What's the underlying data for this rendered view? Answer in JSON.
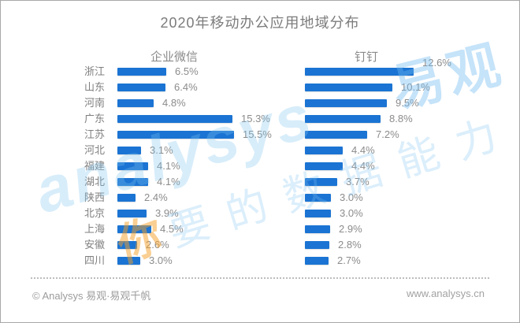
{
  "title": "2020年移动办公应用地域分布",
  "chart_data": {
    "type": "bar",
    "orientation": "horizontal",
    "title": "2020年移动办公应用地域分布",
    "categories": [
      "浙江",
      "山东",
      "河南",
      "广东",
      "江苏",
      "河北",
      "福建",
      "湖北",
      "陕西",
      "北京",
      "上海",
      "安徽",
      "四川"
    ],
    "series": [
      {
        "name": "企业微信",
        "values": [
          6.5,
          6.4,
          4.8,
          15.3,
          15.5,
          3.1,
          4.1,
          4.1,
          2.4,
          3.9,
          4.5,
          2.6,
          3.0
        ]
      },
      {
        "name": "钉钉",
        "values": [
          12.6,
          10.1,
          9.5,
          8.8,
          7.2,
          4.4,
          4.4,
          3.7,
          3.0,
          3.0,
          2.9,
          2.8,
          2.7
        ]
      }
    ],
    "value_suffix": "%",
    "bar_color": "#1b74d3",
    "value_label_color": "#8c8c8c",
    "category_label_color": "#7f7f7f",
    "legend_position": "column-headers",
    "grid": false,
    "xlim_left_pct": [
      0,
      15.5
    ],
    "xlim_right_pct": [
      0,
      12.6
    ]
  },
  "watermark": {
    "brand": "analysys",
    "slogan": "要的数据能力",
    "logo": "易观",
    "accent": "你"
  },
  "footer": {
    "left": "© Analysys 易观·易观千帆",
    "right": "www.analysys.cn"
  }
}
